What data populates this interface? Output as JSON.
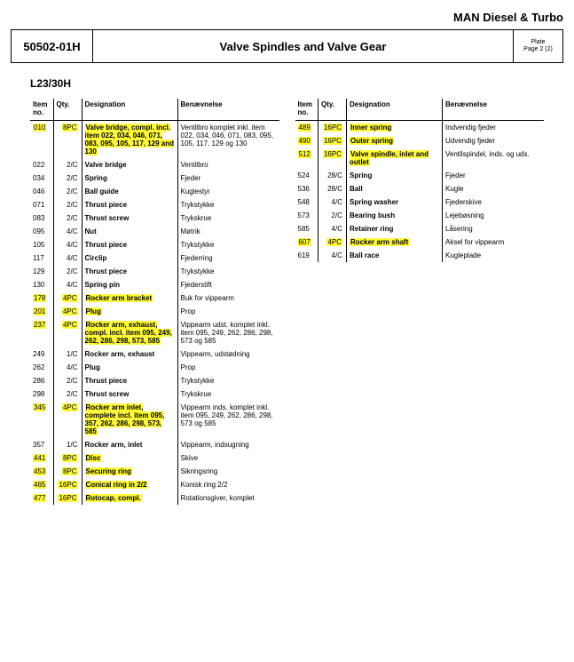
{
  "brand": "MAN Diesel & Turbo",
  "header": {
    "code": "50502-01H",
    "title": "Valve Spindles and Valve Gear",
    "plate_label": "Plate",
    "plate_page": "Page 2 (2)"
  },
  "subheading": "L23/30H",
  "labels": {
    "item_no": "Item no.",
    "qty": "Qty.",
    "designation": "Designation",
    "benaevnelse": "Benævnelse"
  },
  "left_rows": [
    {
      "item": "010",
      "qty": "8PC",
      "des": "Valve bridge, compl. incl. item 022, 034, 046, 071, 083, 095, 105, 117, 129 and 130",
      "ben": "Ventilbro komplet inkl. item 022, 034, 046, 071, 083, 095, 105, 117, 129 og 130",
      "hl": true
    },
    {
      "item": "022",
      "qty": "2/C",
      "des": "Valve bridge",
      "ben": "Ventilbro",
      "hl": false
    },
    {
      "item": "034",
      "qty": "2/C",
      "des": "Spring",
      "ben": "Fjeder",
      "hl": false
    },
    {
      "item": "046",
      "qty": "2/C",
      "des": "Ball guide",
      "ben": "Kuglestyr",
      "hl": false
    },
    {
      "item": "071",
      "qty": "2/C",
      "des": "Thrust piece",
      "ben": "Trykstykke",
      "hl": false
    },
    {
      "item": "083",
      "qty": "2/C",
      "des": "Thrust screw",
      "ben": "Trykskrue",
      "hl": false
    },
    {
      "item": "095",
      "qty": "4/C",
      "des": "Nut",
      "ben": "Møtrik",
      "hl": false
    },
    {
      "item": "105",
      "qty": "4/C",
      "des": "Thrust piece",
      "ben": "Trykstykke",
      "hl": false
    },
    {
      "item": "117",
      "qty": "4/C",
      "des": "Circlip",
      "ben": "Fjederring",
      "hl": false
    },
    {
      "item": "129",
      "qty": "2/C",
      "des": "Thrust piece",
      "ben": "Trykstykke",
      "hl": false
    },
    {
      "item": "130",
      "qty": "4/C",
      "des": "Spring pin",
      "ben": "Fjederstift",
      "hl": false
    },
    {
      "item": "178",
      "qty": "4PC",
      "des": "Rocker arm bracket",
      "ben": "Buk for vippearm",
      "hl": true
    },
    {
      "item": "201",
      "qty": "4PC",
      "des": "Plug",
      "ben": "Prop",
      "hl": true
    },
    {
      "item": "237",
      "qty": "4PC",
      "des": "Rocker arm, exhaust, compl. incl. item 095, 249, 262, 286, 298, 573, 585",
      "ben": "Vippearm udst. komplet inkl. item 095, 249, 262, 286, 298, 573 og 585",
      "hl": true
    },
    {
      "item": "249",
      "qty": "1/C",
      "des": "Rocker arm, exhaust",
      "ben": "Vippearm, udstødning",
      "hl": false
    },
    {
      "item": "262",
      "qty": "4/C",
      "des": "Plug",
      "ben": "Prop",
      "hl": false
    },
    {
      "item": "286",
      "qty": "2/C",
      "des": "Thrust piece",
      "ben": "Trykstykke",
      "hl": false
    },
    {
      "item": "298",
      "qty": "2/C",
      "des": "Thrust screw",
      "ben": "Trykskrue",
      "hl": false
    },
    {
      "item": "345",
      "qty": "4PC",
      "des": "Rocker arm inlet, complete incl. item 095, 357, 262, 286, 298, 573, 585",
      "ben": "Vippearm inds. komplet inkl. item 095, 249, 262, 286, 298, 573 og 585",
      "hl": true
    },
    {
      "item": "357",
      "qty": "1/C",
      "des": "Rocker arm, inlet",
      "ben": "Vippearm, indsugning",
      "hl": false
    },
    {
      "item": "441",
      "qty": "8PC",
      "des": "Disc",
      "ben": "Skive",
      "hl": true
    },
    {
      "item": "453",
      "qty": "8PC",
      "des": "Securing ring",
      "ben": "Sikringsring",
      "hl": true
    },
    {
      "item": "465",
      "qty": "16PC",
      "des": "Conical ring in 2/2",
      "ben": "Konisk ring 2/2",
      "hl": true
    },
    {
      "item": "477",
      "qty": "16PC",
      "des": "Rotocap, compl.",
      "ben": "Rotationsgiver, komplet",
      "hl": true
    }
  ],
  "right_rows": [
    {
      "item": "489",
      "qty": "16PC",
      "des": "Inner spring",
      "ben": "Indvendig fjeder",
      "hl": true
    },
    {
      "item": "490",
      "qty": "16PC",
      "des": "Outer spring",
      "ben": "Udvendig fjeder",
      "hl": true
    },
    {
      "item": "512",
      "qty": "16PC",
      "des": "Valve spindle, inlet and outlet",
      "ben": "Ventilspindel, inds. og uds.",
      "hl": true
    },
    {
      "item": "524",
      "qty": "28/C",
      "des": "Spring",
      "ben": "Fjeder",
      "hl": false
    },
    {
      "item": "536",
      "qty": "28/C",
      "des": "Ball",
      "ben": "Kugle",
      "hl": false
    },
    {
      "item": "548",
      "qty": "4/C",
      "des": "Spring washer",
      "ben": "Fjederskive",
      "hl": false
    },
    {
      "item": "573",
      "qty": "2/C",
      "des": "Bearing bush",
      "ben": "Lejebøsning",
      "hl": false
    },
    {
      "item": "585",
      "qty": "4/C",
      "des": "Retainer ring",
      "ben": "Låsering",
      "hl": false
    },
    {
      "item": "607",
      "qty": "4PC",
      "des": "Rocker arm shaft",
      "ben": "Aksel for vippearm",
      "hl": true
    },
    {
      "item": "619",
      "qty": "4/C",
      "des": "Ball race",
      "ben": "Kugleplade",
      "hl": false
    }
  ],
  "colors": {
    "highlight": "#fffa3c",
    "text": "#000000",
    "background": "#ffffff",
    "border": "#000000"
  }
}
